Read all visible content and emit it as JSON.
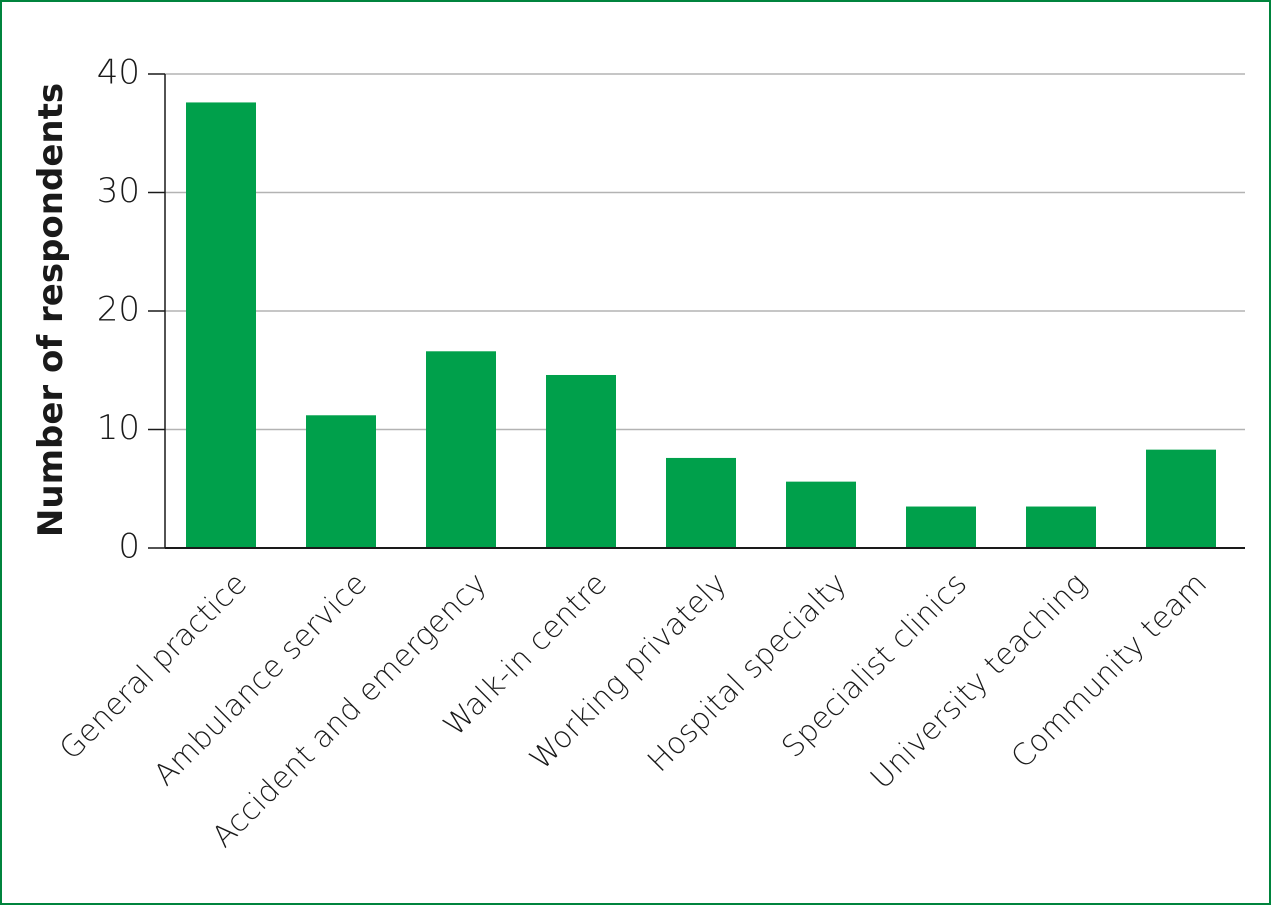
{
  "chart_data": {
    "type": "bar",
    "y_label": "Number of respondents",
    "categories": [
      "General practice",
      "Ambulance service",
      "Accident and emergency",
      "Walk-in centre",
      "Working privately",
      "Hospital specialty",
      "Specialist clinics",
      "University teaching",
      "Community team"
    ],
    "values": [
      37.6,
      11.2,
      16.6,
      14.6,
      7.6,
      5.6,
      3.5,
      3.5,
      8.3
    ],
    "color": "#00a04b",
    "ylim": [
      0,
      40
    ],
    "yticks": [
      0,
      10,
      20,
      30,
      40
    ],
    "grid": true
  }
}
